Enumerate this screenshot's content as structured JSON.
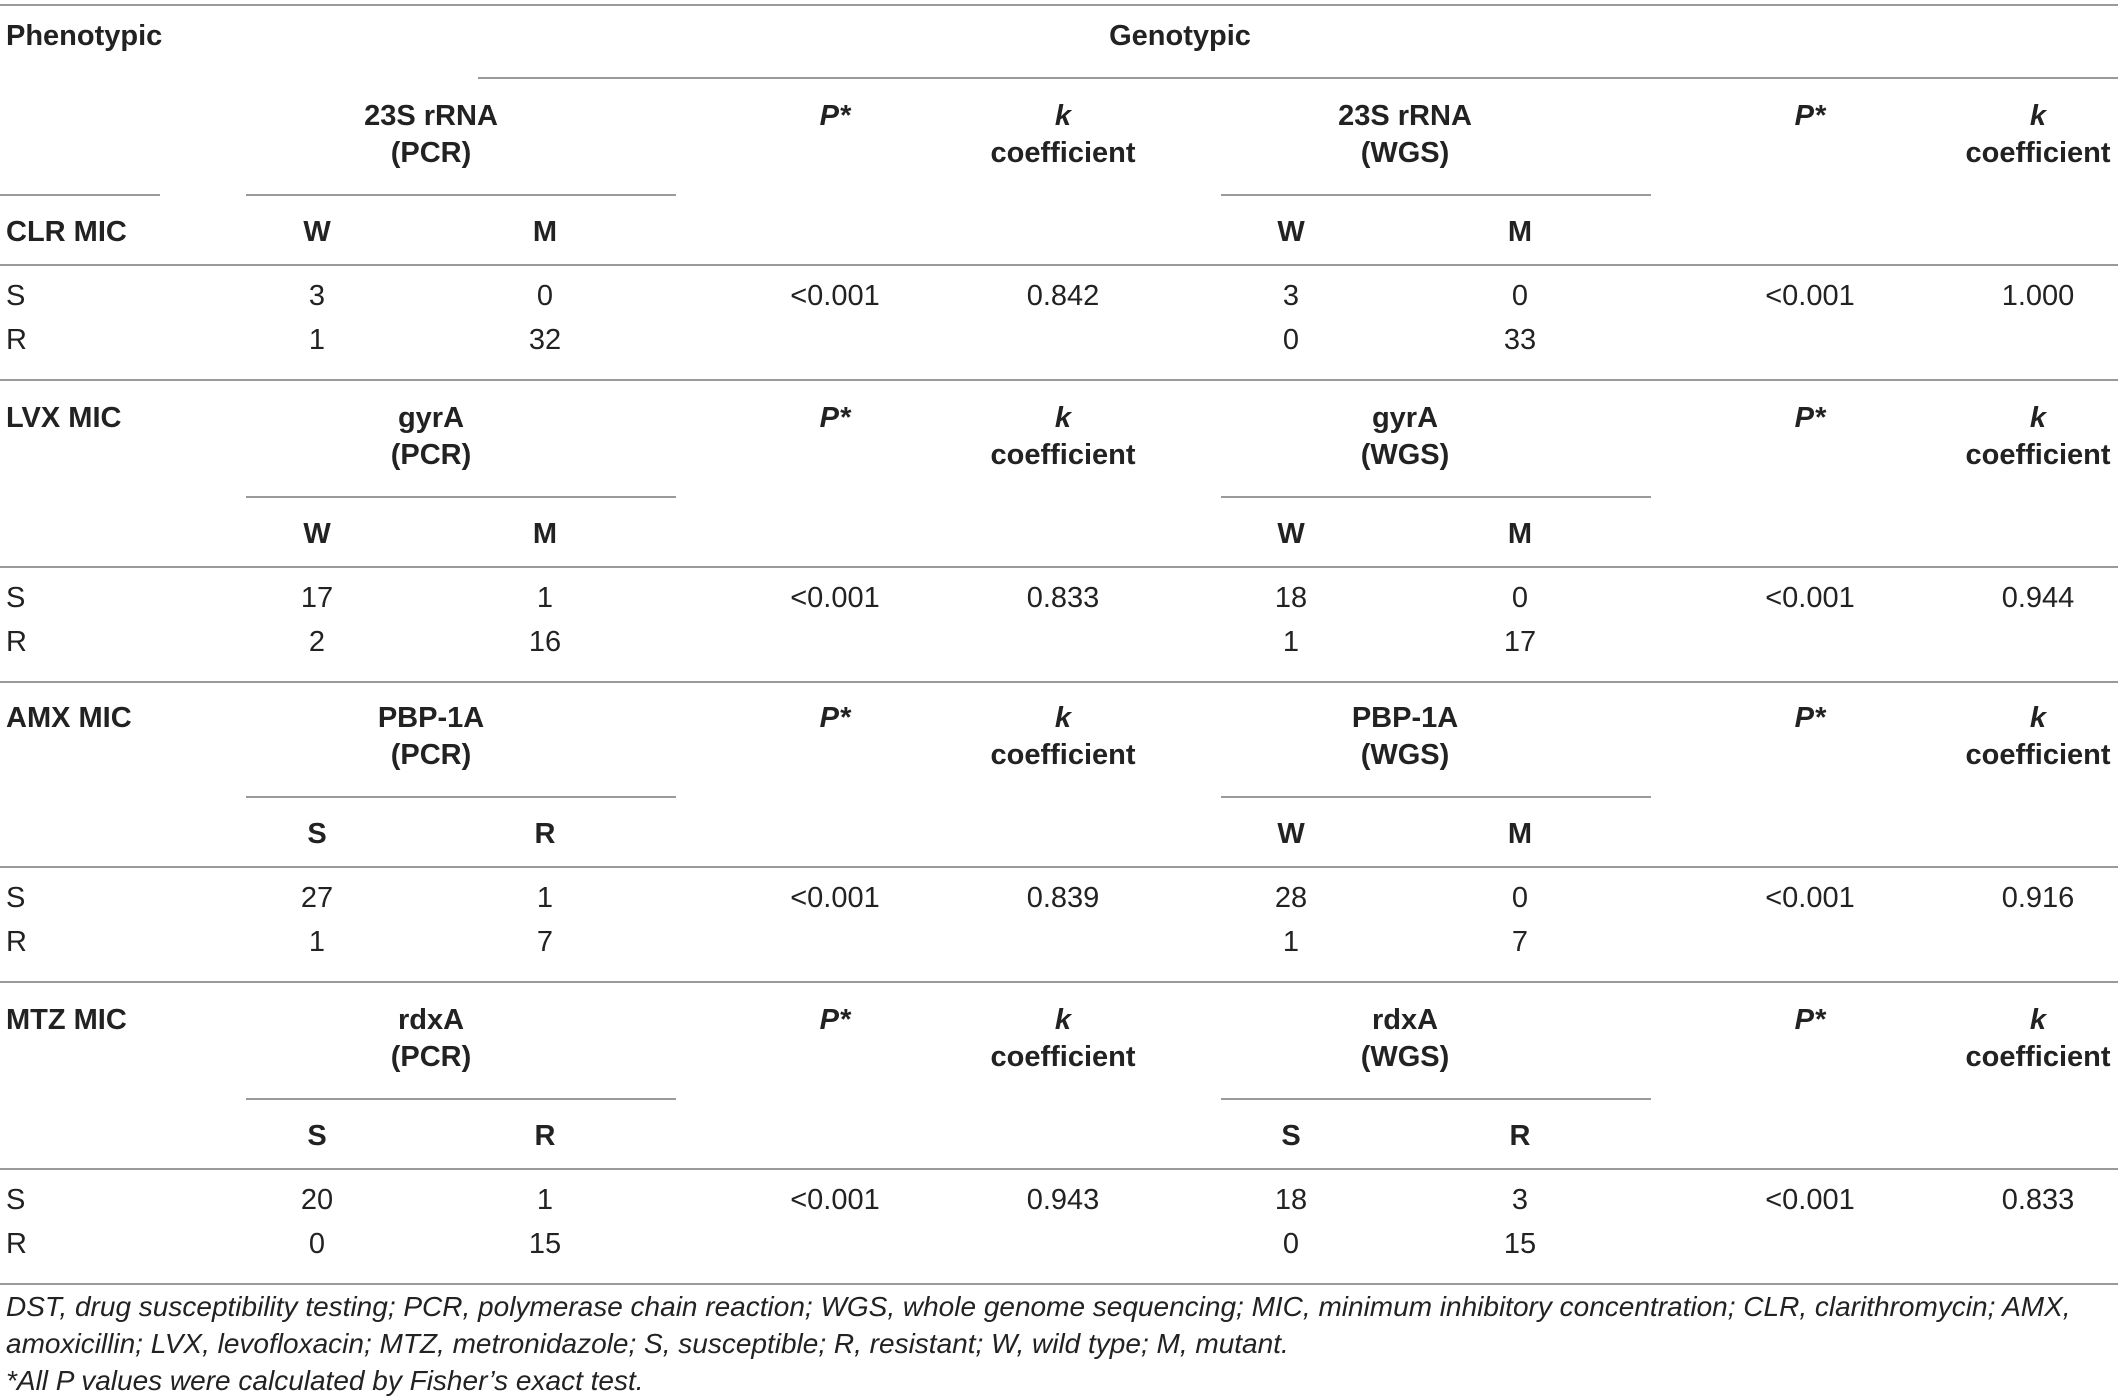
{
  "header": {
    "phenotypic": "Phenotypic",
    "genotypic": "Genotypic"
  },
  "col_labels": {
    "p_label": "P*",
    "k_line1": "k",
    "k_line2": "coefficient"
  },
  "sections": [
    {
      "drug": "CLR MIC",
      "pcr_gene": "23S rRNA",
      "pcr_method": "(PCR)",
      "wgs_gene": "23S rRNA",
      "wgs_method": "(WGS)",
      "pcr_cols": [
        "W",
        "M"
      ],
      "wgs_cols": [
        "W",
        "M"
      ],
      "rows": [
        {
          "label": "S",
          "pcr": [
            "3",
            "0"
          ],
          "p_pcr": "<0.001",
          "k_pcr": "0.842",
          "wgs": [
            "3",
            "0"
          ],
          "p_wgs": "<0.001",
          "k_wgs": "1.000"
        },
        {
          "label": "R",
          "pcr": [
            "1",
            "32"
          ],
          "p_pcr": "",
          "k_pcr": "",
          "wgs": [
            "0",
            "33"
          ],
          "p_wgs": "",
          "k_wgs": ""
        }
      ]
    },
    {
      "drug": "LVX MIC",
      "pcr_gene": "gyrA",
      "pcr_method": "(PCR)",
      "wgs_gene": "gyrA",
      "wgs_method": "(WGS)",
      "pcr_cols": [
        "W",
        "M"
      ],
      "wgs_cols": [
        "W",
        "M"
      ],
      "rows": [
        {
          "label": "S",
          "pcr": [
            "17",
            "1"
          ],
          "p_pcr": "<0.001",
          "k_pcr": "0.833",
          "wgs": [
            "18",
            "0"
          ],
          "p_wgs": "<0.001",
          "k_wgs": "0.944"
        },
        {
          "label": "R",
          "pcr": [
            "2",
            "16"
          ],
          "p_pcr": "",
          "k_pcr": "",
          "wgs": [
            "1",
            "17"
          ],
          "p_wgs": "",
          "k_wgs": ""
        }
      ]
    },
    {
      "drug": "AMX MIC",
      "pcr_gene": "PBP-1A",
      "pcr_method": "(PCR)",
      "wgs_gene": "PBP-1A",
      "wgs_method": "(WGS)",
      "pcr_cols": [
        "S",
        "R"
      ],
      "wgs_cols": [
        "W",
        "M"
      ],
      "rows": [
        {
          "label": "S",
          "pcr": [
            "27",
            "1"
          ],
          "p_pcr": "<0.001",
          "k_pcr": "0.839",
          "wgs": [
            "28",
            "0"
          ],
          "p_wgs": "<0.001",
          "k_wgs": "0.916"
        },
        {
          "label": "R",
          "pcr": [
            "1",
            "7"
          ],
          "p_pcr": "",
          "k_pcr": "",
          "wgs": [
            "1",
            "7"
          ],
          "p_wgs": "",
          "k_wgs": ""
        }
      ]
    },
    {
      "drug": "MTZ MIC",
      "pcr_gene": "rdxA",
      "pcr_method": "(PCR)",
      "wgs_gene": "rdxA",
      "wgs_method": "(WGS)",
      "pcr_cols": [
        "S",
        "R"
      ],
      "wgs_cols": [
        "S",
        "R"
      ],
      "rows": [
        {
          "label": "S",
          "pcr": [
            "20",
            "1"
          ],
          "p_pcr": "<0.001",
          "k_pcr": "0.943",
          "wgs": [
            "18",
            "3"
          ],
          "p_wgs": "<0.001",
          "k_wgs": "0.833"
        },
        {
          "label": "R",
          "pcr": [
            "0",
            "15"
          ],
          "p_pcr": "",
          "k_pcr": "",
          "wgs": [
            "0",
            "15"
          ],
          "p_wgs": "",
          "k_wgs": ""
        }
      ]
    }
  ],
  "footnotes": {
    "line1": "DST, drug susceptibility testing; PCR, polymerase chain reaction; WGS, whole genome sequencing; MIC, minimum inhibitory concentration; CLR, clarithromycin; AMX,",
    "line2": "amoxicillin; LVX, levofloxacin; MTZ, metronidazole; S, susceptible; R, resistant; W, wild type; M, mutant.",
    "line3": "*All P values were calculated by Fisher’s exact test."
  }
}
